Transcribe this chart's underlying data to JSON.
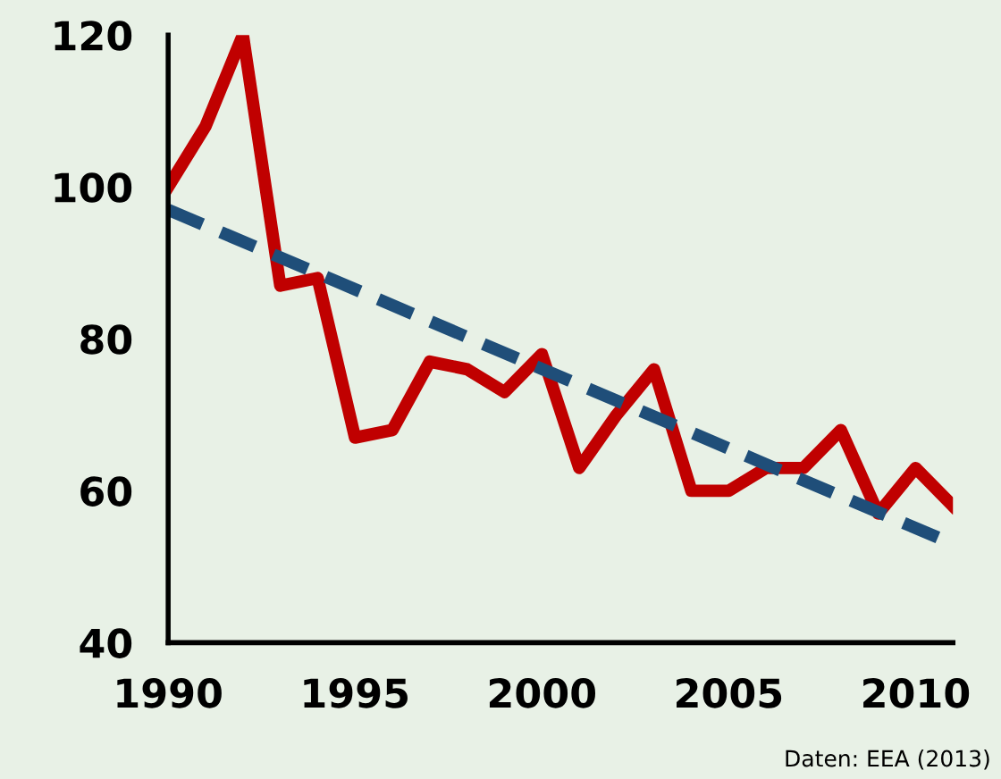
{
  "chart_data": {
    "type": "line",
    "x": [
      1990,
      1991,
      1992,
      1993,
      1994,
      1995,
      1996,
      1997,
      1998,
      1999,
      2000,
      2001,
      2002,
      2003,
      2004,
      2005,
      2006,
      2007,
      2008,
      2009,
      2010,
      2011
    ],
    "series": [
      {
        "color": "#c00000",
        "line_style": "solid",
        "values": [
          100,
          108,
          120,
          87,
          88,
          67,
          68,
          77,
          76,
          73,
          78,
          63,
          70,
          76,
          60,
          60,
          63,
          63,
          68,
          57,
          63,
          58
        ]
      },
      {
        "type": "line",
        "color": "#1f4e79",
        "line_style": "dashed",
        "x": [
          1990,
          2011
        ],
        "values": [
          97,
          53
        ]
      }
    ],
    "xlim": [
      1990,
      2011
    ],
    "ylim": [
      40,
      120
    ],
    "xticks": [
      1990,
      1995,
      2000,
      2005,
      2010
    ],
    "yticks": [
      40,
      60,
      80,
      100,
      120
    ],
    "grid": false,
    "marker": "none",
    "annotations": [
      "Daten: EEA (2013)"
    ]
  }
}
